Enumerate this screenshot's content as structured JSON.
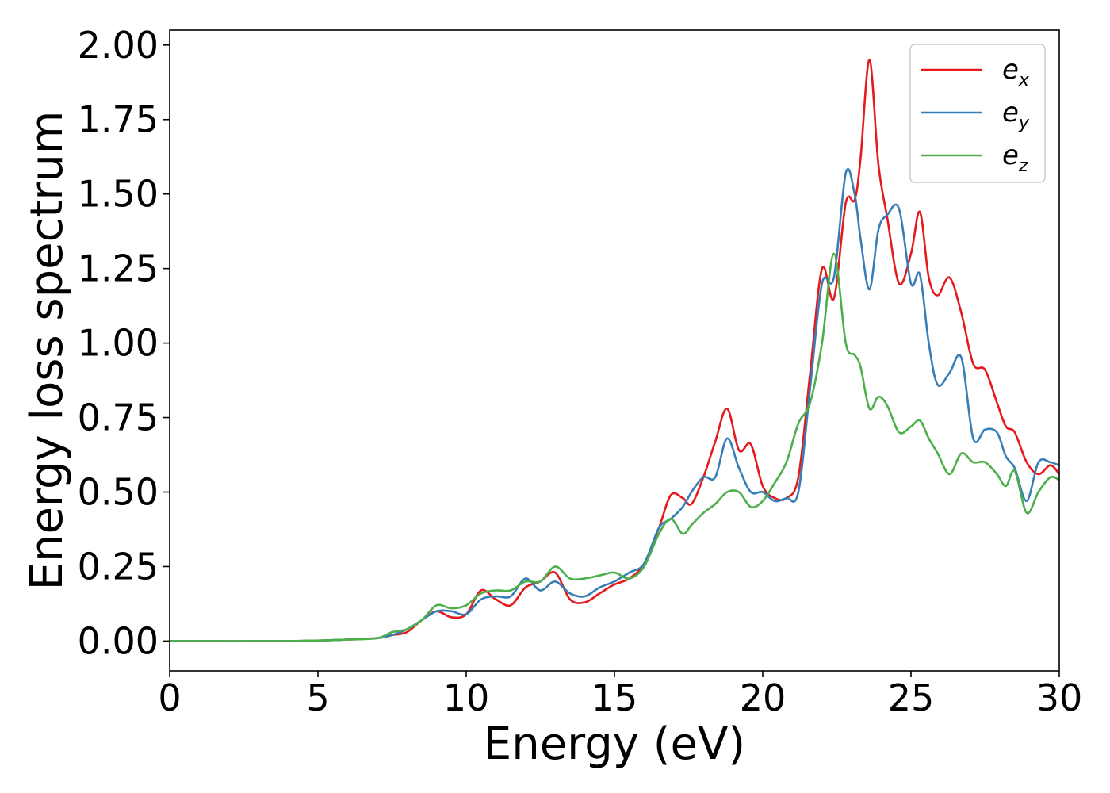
{
  "chart_data": {
    "type": "line",
    "xlabel": "Energy (eV)",
    "ylabel": "Energy loss spectrum",
    "xlim": [
      0,
      30
    ],
    "ylim": [
      -0.1,
      2.05
    ],
    "xticks": [
      0,
      5,
      10,
      15,
      20,
      25,
      30
    ],
    "xtick_labels": [
      "0",
      "5",
      "10",
      "15",
      "20",
      "25",
      "30"
    ],
    "yticks": [
      0,
      0.25,
      0.5,
      0.75,
      1.0,
      1.25,
      1.5,
      1.75,
      2.0
    ],
    "ytick_labels": [
      "0.00",
      "0.25",
      "0.50",
      "0.75",
      "1.00",
      "1.25",
      "1.50",
      "1.75",
      "2.00"
    ],
    "grid": false,
    "legend_position": "top-right",
    "series": [
      {
        "name": "e",
        "subscript": "x",
        "color": "#e41a1c",
        "x": [
          0,
          4,
          6,
          7,
          7.5,
          8,
          8.5,
          9,
          9.5,
          10,
          10.5,
          11,
          11.5,
          12,
          12.5,
          13,
          13.5,
          14,
          14.5,
          15,
          15.5,
          16,
          16.5,
          16.9,
          17.3,
          17.6,
          18,
          18.4,
          18.8,
          19.2,
          19.6,
          20,
          20.4,
          20.8,
          21.2,
          21.6,
          22,
          22.4,
          22.8,
          23.1,
          23.3,
          23.6,
          23.9,
          24.2,
          24.6,
          25,
          25.3,
          25.6,
          25.9,
          26.3,
          26.7,
          27.1,
          27.5,
          27.9,
          28.2,
          28.5,
          28.9,
          29.3,
          29.7,
          30
        ],
        "y": [
          0,
          0,
          0.005,
          0.01,
          0.02,
          0.03,
          0.07,
          0.1,
          0.08,
          0.09,
          0.17,
          0.14,
          0.12,
          0.18,
          0.2,
          0.23,
          0.14,
          0.13,
          0.16,
          0.19,
          0.21,
          0.26,
          0.38,
          0.49,
          0.48,
          0.46,
          0.55,
          0.67,
          0.78,
          0.64,
          0.66,
          0.52,
          0.48,
          0.48,
          0.55,
          0.9,
          1.25,
          1.15,
          1.47,
          1.48,
          1.62,
          1.95,
          1.6,
          1.42,
          1.2,
          1.3,
          1.44,
          1.22,
          1.16,
          1.22,
          1.1,
          0.93,
          0.91,
          0.8,
          0.72,
          0.7,
          0.6,
          0.56,
          0.59,
          0.56
        ]
      },
      {
        "name": "e",
        "subscript": "y",
        "color": "#377eb8",
        "x": [
          0,
          4,
          6,
          7,
          7.5,
          8,
          8.5,
          9,
          9.5,
          10,
          10.5,
          11,
          11.5,
          12,
          12.5,
          13,
          13.5,
          14,
          14.5,
          15,
          15.5,
          16,
          16.5,
          16.9,
          17.3,
          17.6,
          18,
          18.4,
          18.8,
          19.2,
          19.6,
          20,
          20.4,
          20.8,
          21.2,
          21.6,
          22,
          22.4,
          22.8,
          23.1,
          23.3,
          23.6,
          23.9,
          24.2,
          24.6,
          25,
          25.3,
          25.6,
          25.9,
          26.3,
          26.7,
          27.1,
          27.5,
          27.9,
          28.2,
          28.5,
          28.9,
          29.3,
          29.7,
          30
        ],
        "y": [
          0,
          0,
          0.005,
          0.01,
          0.02,
          0.04,
          0.07,
          0.1,
          0.1,
          0.09,
          0.14,
          0.15,
          0.15,
          0.21,
          0.17,
          0.2,
          0.16,
          0.15,
          0.18,
          0.2,
          0.23,
          0.26,
          0.38,
          0.41,
          0.45,
          0.5,
          0.55,
          0.55,
          0.68,
          0.58,
          0.5,
          0.5,
          0.47,
          0.48,
          0.5,
          0.85,
          1.2,
          1.22,
          1.57,
          1.5,
          1.35,
          1.18,
          1.38,
          1.43,
          1.45,
          1.2,
          1.23,
          1.0,
          0.86,
          0.9,
          0.95,
          0.68,
          0.71,
          0.7,
          0.62,
          0.58,
          0.47,
          0.6,
          0.6,
          0.59
        ]
      },
      {
        "name": "e",
        "subscript": "z",
        "color": "#4daf4a",
        "x": [
          0,
          4,
          6,
          7,
          7.5,
          8,
          8.5,
          9,
          9.5,
          10,
          10.5,
          11,
          11.5,
          12,
          12.5,
          13,
          13.5,
          14,
          14.5,
          15,
          15.5,
          16,
          16.5,
          16.9,
          17.3,
          17.6,
          18,
          18.4,
          18.8,
          19.2,
          19.6,
          20,
          20.4,
          20.8,
          21.2,
          21.6,
          22,
          22.4,
          22.8,
          23.1,
          23.3,
          23.6,
          23.9,
          24.2,
          24.6,
          25,
          25.3,
          25.6,
          25.9,
          26.3,
          26.7,
          27.1,
          27.5,
          27.9,
          28.2,
          28.5,
          28.9,
          29.3,
          29.7,
          30
        ],
        "y": [
          0,
          0,
          0.005,
          0.01,
          0.03,
          0.04,
          0.07,
          0.12,
          0.11,
          0.12,
          0.16,
          0.17,
          0.17,
          0.2,
          0.2,
          0.25,
          0.21,
          0.21,
          0.22,
          0.23,
          0.21,
          0.25,
          0.36,
          0.41,
          0.36,
          0.39,
          0.43,
          0.46,
          0.5,
          0.5,
          0.45,
          0.47,
          0.53,
          0.6,
          0.73,
          0.8,
          1.0,
          1.3,
          1.0,
          0.96,
          0.92,
          0.78,
          0.82,
          0.79,
          0.7,
          0.72,
          0.74,
          0.68,
          0.63,
          0.56,
          0.63,
          0.6,
          0.6,
          0.56,
          0.52,
          0.57,
          0.43,
          0.5,
          0.55,
          0.54
        ]
      }
    ]
  }
}
